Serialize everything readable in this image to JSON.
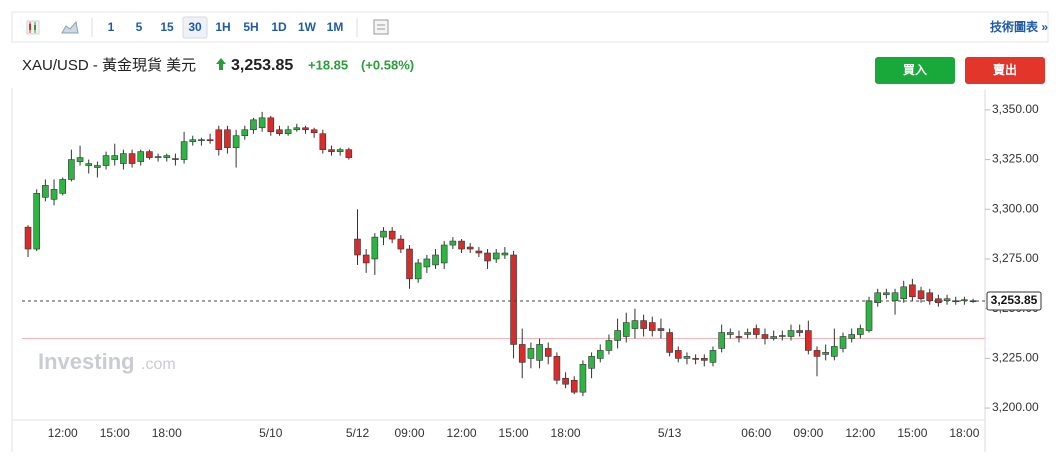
{
  "toolbar": {
    "intervals": [
      "1",
      "5",
      "15",
      "30",
      "1H",
      "5H",
      "1D",
      "1W",
      "1M"
    ],
    "right_link": "技術圖表 »"
  },
  "header": {
    "title": "XAU/USD - 黃金現貨 美元",
    "price": "3,253.85",
    "change": "+18.85",
    "change_pct": "(+0.58%)"
  },
  "buttons": {
    "buy": "買入",
    "sell": "賣出"
  },
  "watermark": {
    "brand": "Investing",
    "suffix": ".com"
  },
  "chart_data": {
    "type": "candlestick",
    "up_color": "#2fb344",
    "down_color": "#d62c2c",
    "categories": [
      null,
      null,
      null,
      null,
      "12:00",
      null,
      null,
      null,
      null,
      null,
      "15:00",
      null,
      null,
      null,
      null,
      null,
      "18:00",
      null,
      null,
      null,
      null,
      null,
      null,
      null,
      null,
      null,
      null,
      null,
      "5/10",
      null,
      null,
      null,
      null,
      null,
      null,
      null,
      null,
      null,
      "5/12",
      null,
      null,
      null,
      null,
      null,
      "09:00",
      null,
      null,
      null,
      null,
      null,
      "12:00",
      null,
      null,
      null,
      null,
      null,
      "15:00",
      null,
      null,
      null,
      null,
      null,
      "18:00",
      null,
      null,
      null,
      null,
      null,
      null,
      null,
      null,
      null,
      null,
      null,
      "5/13",
      null,
      null,
      null,
      null,
      null,
      null,
      null,
      null,
      null,
      "06:00",
      null,
      null,
      null,
      null,
      null,
      "09:00",
      null,
      null,
      null,
      null,
      null,
      "12:00",
      null,
      null,
      null,
      null,
      null,
      "15:00",
      null,
      null,
      null,
      null,
      null,
      "18:00",
      null
    ],
    "open": [
      3291,
      3280,
      3306,
      3305,
      3308,
      3315,
      3324,
      3322,
      3321,
      3322,
      3325,
      3323,
      3328,
      3324,
      3329,
      3326,
      3326,
      3325.5,
      3325,
      3334,
      3334.5,
      3335,
      3340,
      3340,
      3331,
      3337,
      3340,
      3341,
      3346,
      3340,
      3338,
      3340,
      3341,
      3340,
      3338,
      3330,
      3329,
      3330,
      3285,
      3277,
      3275,
      3286,
      3289,
      3285,
      3280,
      3265,
      3271,
      3272,
      3273,
      3282,
      3284,
      3281,
      3279,
      3278,
      3275,
      3277,
      3277,
      3232,
      3225,
      3224,
      3230,
      3226,
      3215,
      3214,
      3208,
      3220,
      3225,
      3229,
      3234,
      3236,
      3240,
      3244,
      3243,
      3240,
      3238,
      3229,
      3225,
      3225,
      3225,
      3223,
      3230,
      3237,
      3236,
      3237,
      3240,
      3237,
      3235,
      3236,
      3236,
      3239,
      3239,
      3229,
      3227,
      3226,
      3230,
      3235,
      3237,
      3239,
      3253,
      3257,
      3254,
      3255,
      3262,
      3259,
      3258,
      3255,
      3254,
      3254,
      3254,
      3254
    ],
    "high": [
      3292,
      3310,
      3315,
      3315,
      3316,
      3330,
      3332,
      3325,
      3324,
      3329,
      3333,
      3330,
      3330,
      3330,
      3330,
      3328,
      3328,
      3328,
      3339,
      3337,
      3336,
      3338,
      3342,
      3342,
      3340,
      3342,
      3346,
      3349,
      3347,
      3342,
      3342,
      3343,
      3342,
      3341,
      3340,
      3332,
      3331,
      3331,
      3300,
      3280,
      3288,
      3291,
      3291,
      3287,
      3282,
      3275,
      3277,
      3280,
      3284,
      3286,
      3285,
      3283,
      3281,
      3280,
      3280,
      3281,
      3279,
      3240,
      3233,
      3235,
      3233,
      3228,
      3218,
      3216,
      3224,
      3228,
      3232,
      3237,
      3245,
      3248,
      3250,
      3247,
      3246,
      3245,
      3240,
      3231,
      3228,
      3227,
      3227,
      3231,
      3242,
      3240,
      3239,
      3240,
      3242,
      3240,
      3239,
      3239,
      3242,
      3242,
      3244,
      3231,
      3232,
      3240,
      3238,
      3240,
      3242,
      3256,
      3260,
      3260,
      3260,
      3264,
      3265,
      3261,
      3260,
      3257,
      3257,
      3256,
      3256,
      3255
    ],
    "low": [
      3276,
      3279,
      3304,
      3302,
      3307,
      3314,
      3322,
      3318,
      3316,
      3320,
      3322,
      3320,
      3321,
      3322,
      3325,
      3324,
      3324,
      3322,
      3323,
      3332,
      3332,
      3333,
      3327,
      3328,
      3321,
      3335,
      3338,
      3339,
      3337,
      3337,
      3337,
      3339,
      3338,
      3336,
      3328,
      3327,
      3327,
      3325,
      3272,
      3268,
      3267,
      3282,
      3283,
      3278,
      3260,
      3263,
      3268,
      3270,
      3270,
      3280,
      3278,
      3278,
      3276,
      3270,
      3273,
      3275,
      3225,
      3215,
      3220,
      3220,
      3222,
      3212,
      3210,
      3207,
      3206,
      3215,
      3223,
      3227,
      3230,
      3233,
      3235,
      3236,
      3236,
      3235,
      3226,
      3223,
      3222,
      3222,
      3221,
      3221,
      3228,
      3235,
      3233,
      3235,
      3235,
      3232,
      3234,
      3234,
      3234,
      3236,
      3227,
      3216,
      3224,
      3224,
      3228,
      3233,
      3235,
      3238,
      3251,
      3255,
      3247,
      3253,
      3254,
      3253,
      3252,
      3251,
      3252,
      3252,
      3252,
      3253
    ],
    "close": [
      3280,
      3308,
      3312,
      3310,
      3315,
      3325,
      3326,
      3323,
      3322,
      3327,
      3327,
      3328,
      3323,
      3329,
      3326,
      3326.5,
      3327,
      3325,
      3334,
      3335,
      3335,
      3334.5,
      3330,
      3331,
      3337,
      3340,
      3345,
      3346,
      3339,
      3338,
      3340,
      3341,
      3340,
      3338.5,
      3330,
      3329,
      3330,
      3326,
      3277,
      3273,
      3286,
      3289,
      3285,
      3280,
      3265,
      3273,
      3275,
      3277,
      3282,
      3284,
      3280,
      3280,
      3278,
      3274,
      3278,
      3278,
      3232,
      3223,
      3230,
      3232,
      3226,
      3214,
      3212,
      3208,
      3222,
      3226,
      3229,
      3234,
      3239,
      3243,
      3244,
      3240,
      3239,
      3239,
      3228,
      3225,
      3226,
      3224.5,
      3224,
      3229,
      3238,
      3238,
      3235.5,
      3238,
      3237,
      3235,
      3236,
      3236.5,
      3239,
      3238,
      3229,
      3226,
      3228,
      3231,
      3236,
      3237,
      3240,
      3254,
      3258,
      3258,
      3258,
      3261,
      3256,
      3255,
      3254,
      3253,
      3255,
      3253.5,
      3254.5,
      3253.85
    ],
    "ylim": [
      3194,
      3361
    ],
    "yticks": [
      {
        "value": 3200,
        "label": "3,200.00"
      },
      {
        "value": 3225,
        "label": "3,225.00"
      },
      {
        "value": 3250,
        "label": "3,250.00"
      },
      {
        "value": 3275,
        "label": "3,275.00"
      },
      {
        "value": 3300,
        "label": "3,300.00"
      },
      {
        "value": 3325,
        "label": "3,325.00"
      },
      {
        "value": 3350,
        "label": "3,350.00"
      }
    ],
    "last_price": {
      "value": 3253.85,
      "label": "3,253.85"
    },
    "prev_close": 3235,
    "prev_close_color": "#f4b6b6"
  }
}
